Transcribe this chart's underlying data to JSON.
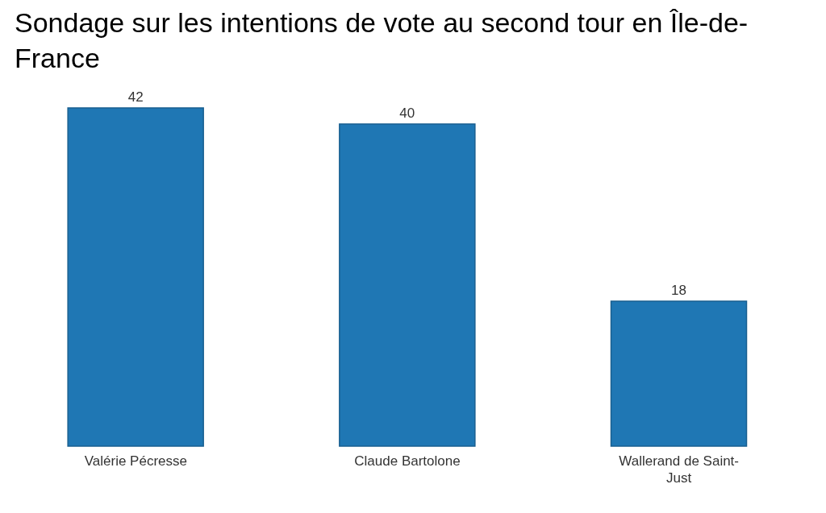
{
  "chart_data": {
    "type": "bar",
    "title": "Sondage sur les intentions de vote au second tour en Île-de-France",
    "categories": [
      "Valérie Pécresse",
      "Claude Bartolone",
      "Wallerand de Saint-Just"
    ],
    "values": [
      42,
      40,
      18
    ],
    "color": "#1f77b4",
    "data_labels": true
  }
}
